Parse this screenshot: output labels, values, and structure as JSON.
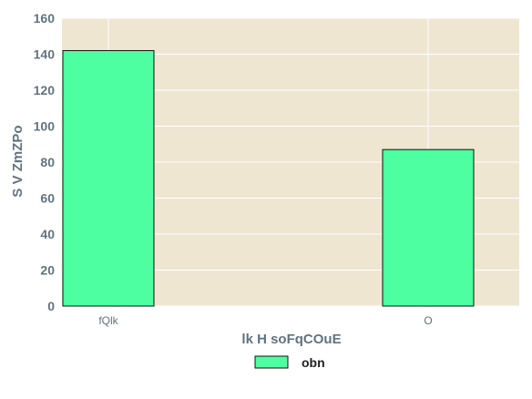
{
  "chart_data": {
    "type": "bar",
    "categories": [
      "fQlk",
      "O"
    ],
    "series": [
      {
        "name": "obn",
        "values": [
          142,
          87
        ]
      }
    ],
    "title": "",
    "xlabel": "lk H soFqCOuE",
    "ylabel": "S V ZmZPo",
    "ylim": [
      0,
      160
    ],
    "yticks": [
      0,
      20,
      40,
      60,
      80,
      100,
      120,
      140,
      160
    ],
    "grid": true,
    "legend_position": "bottom-center",
    "colors": {
      "plot_background": "#efe6d2",
      "bar_fill": "#4dffa0",
      "bar_edge": "#111111",
      "grid": "#ffffff",
      "text": "#5f7380"
    }
  }
}
